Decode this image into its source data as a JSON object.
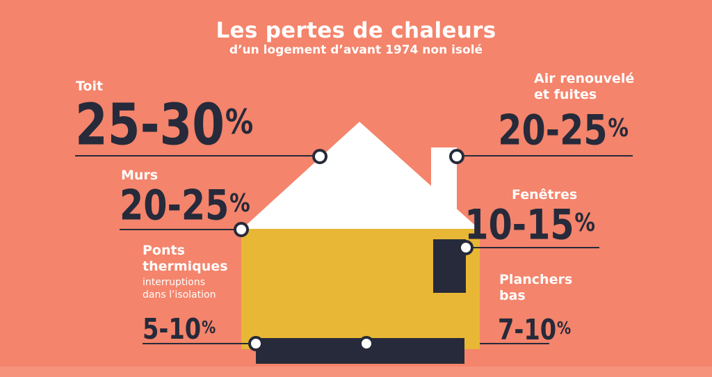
{
  "title": "Les pertes de chaleurs",
  "subtitle": "d’un logement d’avant 1974 non isolé",
  "items": [
    {
      "label": "Toit",
      "range": "25-30",
      "unit": "%",
      "low": 25,
      "high": 30
    },
    {
      "label": "Air renouvelé et fuites",
      "range": "20-25",
      "unit": "%",
      "low": 20,
      "high": 25
    },
    {
      "label": "Murs",
      "range": "20-25",
      "unit": "%",
      "low": 20,
      "high": 25
    },
    {
      "label": "Fenêtres",
      "range": "10-15",
      "unit": "%",
      "low": 10,
      "high": 15
    },
    {
      "label": "Ponts thermiques",
      "note": "interruptions dans l’isolation",
      "range": "5-10",
      "unit": "%",
      "low": 5,
      "high": 10
    },
    {
      "label": "Planchers bas",
      "range": "7-10",
      "unit": "%",
      "low": 7,
      "high": 10
    }
  ],
  "colors": {
    "background": "#F4846B",
    "roof": "#FFFFFF",
    "walls": "#E8B735",
    "dark": "#262A3A"
  }
}
